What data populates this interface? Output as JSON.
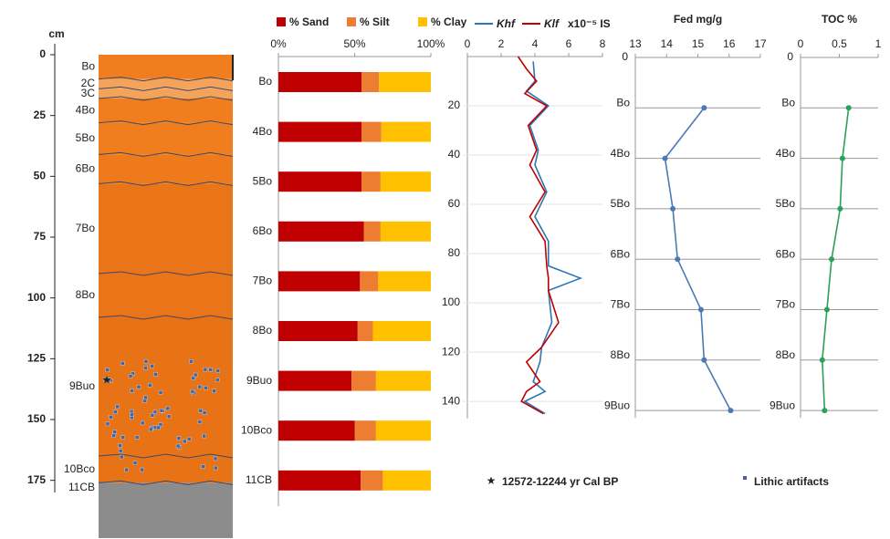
{
  "chart_data": [
    {
      "type": "profile",
      "axis_label": "cm",
      "categories": [
        "Bo",
        "2C",
        "3C",
        "4Bo",
        "5Bo",
        "6Bo",
        "7Bo",
        "8Bo",
        "9Buo",
        "10Bco",
        "11CB"
      ],
      "tops": [
        0,
        10,
        14,
        18,
        28,
        41,
        53,
        90,
        108,
        165,
        176
      ],
      "colors": [
        "#f07d1e",
        "#f4a35a",
        "#f4a35a",
        "#f07d1e",
        "#f07d1e",
        "#ee7a1c",
        "#ea7418",
        "#ea7418",
        "#e87216",
        "#e87216",
        "#8c8c8c"
      ],
      "ylim": [
        0,
        180
      ],
      "yticks": [
        0,
        25,
        50,
        75,
        100,
        125,
        150,
        175
      ],
      "star_depth": 134,
      "star_label": "12572-12244 yr Cal BP",
      "artifact_label": "Lithic artifacts"
    },
    {
      "type": "stacked_barh",
      "categories": [
        "Bo",
        "4Bo",
        "5Bo",
        "6Bo",
        "7Bo",
        "8Bo",
        "9Buo",
        "10Bco",
        "11CB"
      ],
      "series": [
        {
          "name": "% Sand",
          "color": "#c00000",
          "values": [
            54.5,
            54.5,
            54.5,
            56,
            53.5,
            52,
            48,
            50,
            54
          ]
        },
        {
          "name": "% Silt",
          "color": "#ed7d31",
          "values": [
            11.5,
            13,
            12.5,
            11,
            12,
            10,
            16,
            14,
            14.5
          ]
        },
        {
          "name": "% Clay",
          "color": "#ffc000",
          "values": [
            34,
            32.5,
            33,
            33,
            34.5,
            38,
            36,
            36,
            31.5
          ]
        }
      ],
      "xlim": [
        0,
        100
      ],
      "xticks": [
        {
          "value": 0,
          "label": "0%"
        },
        {
          "value": 50,
          "label": "50%"
        },
        {
          "value": 100,
          "label": "100%"
        }
      ]
    },
    {
      "type": "depth_line",
      "unit_label": "x10⁻⁵ IS",
      "series": [
        {
          "name": "Khf",
          "color": "#2e75b6",
          "depths": [
            2,
            10,
            14,
            20,
            28,
            38,
            44,
            55,
            65,
            75,
            85,
            90,
            95,
            108,
            118,
            124,
            132,
            136,
            140,
            145
          ],
          "values": [
            3.9,
            4.0,
            3.5,
            4.8,
            3.7,
            4.2,
            4.0,
            4.7,
            4.0,
            4.8,
            4.8,
            6.7,
            4.8,
            5.0,
            4.4,
            4.3,
            3.9,
            4.6,
            3.4,
            4.6
          ]
        },
        {
          "name": "Klf",
          "color": "#c00000",
          "depths": [
            0,
            5,
            10,
            15,
            20,
            28,
            38,
            44,
            55,
            65,
            75,
            85,
            90,
            95,
            108,
            118,
            124,
            132,
            136,
            140,
            145
          ],
          "values": [
            3.0,
            3.5,
            4.1,
            3.4,
            4.7,
            3.6,
            4.1,
            3.7,
            4.6,
            3.7,
            4.6,
            4.7,
            4.8,
            4.8,
            5.4,
            4.4,
            3.5,
            4.3,
            3.5,
            3.2,
            4.5
          ]
        }
      ],
      "xlim": [
        0,
        8
      ],
      "xticks": [
        0,
        2,
        4,
        6,
        8
      ],
      "ylim": [
        0,
        147
      ],
      "yticks": [
        20,
        40,
        60,
        80,
        100,
        120,
        140
      ]
    },
    {
      "type": "depth_profile",
      "title": "Fed mg/g",
      "color": "#4a7ab5",
      "top_label": "0",
      "categories": [
        "Bo",
        "4Bo",
        "5Bo",
        "6Bo",
        "7Bo",
        "8Bo",
        "9Buo"
      ],
      "values": [
        15.2,
        13.95,
        14.2,
        14.35,
        15.1,
        15.2,
        16.05
      ],
      "xlim": [
        13,
        17
      ],
      "xticks": [
        13,
        14,
        15,
        16,
        17
      ]
    },
    {
      "type": "depth_profile",
      "title": "TOC %",
      "color": "#2ca05a",
      "top_label": "0",
      "categories": [
        "Bo",
        "4Bo",
        "5Bo",
        "6Bo",
        "7Bo",
        "8Bo",
        "9Buo"
      ],
      "values": [
        0.62,
        0.54,
        0.51,
        0.4,
        0.34,
        0.28,
        0.31
      ],
      "xlim": [
        0,
        1
      ],
      "xticks": [
        0,
        0.5,
        1
      ]
    }
  ]
}
